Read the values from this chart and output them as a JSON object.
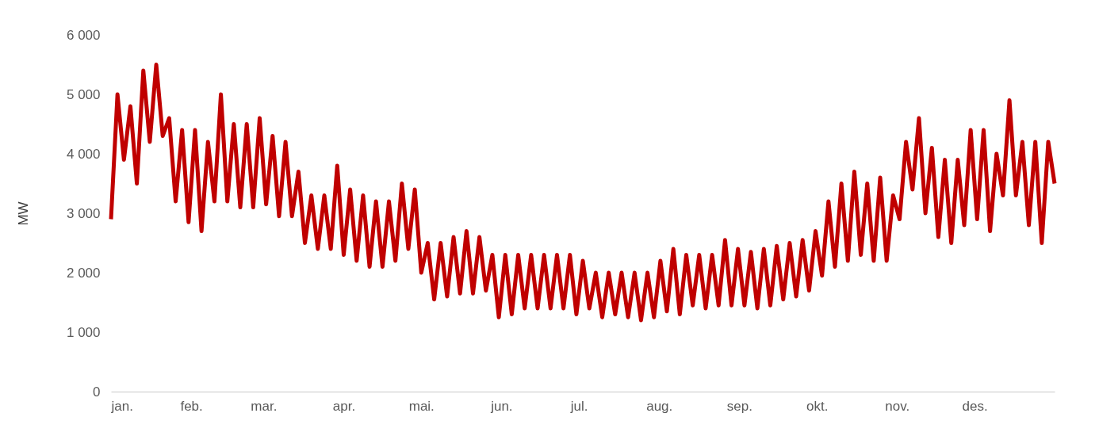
{
  "chart_data": {
    "type": "line",
    "ylabel": "MW",
    "x": [
      "--01-01",
      "--01-03T12:00",
      "--01-06",
      "--01-08T12:00",
      "--01-11",
      "--01-13T12:00",
      "--01-16",
      "--01-18T12:00",
      "--01-21",
      "--01-23T12:00",
      "--01-26",
      "--01-28T12:00",
      "--01-31",
      "--02-02T12:00",
      "--02-05",
      "--02-07T12:00",
      "--02-10",
      "--02-12T12:00",
      "--02-15",
      "--02-17T12:00",
      "--02-20",
      "--02-22T12:00",
      "--02-25",
      "--02-27T12:00",
      "--03-02",
      "--03-04T12:00",
      "--03-07",
      "--03-09T12:00",
      "--03-12",
      "--03-14T12:00",
      "--03-17",
      "--03-19T12:00",
      "--03-22",
      "--03-24T12:00",
      "--03-27",
      "--03-29T12:00",
      "--04-01",
      "--04-03T12:00",
      "--04-06",
      "--04-08T12:00",
      "--04-11",
      "--04-13T12:00",
      "--04-16",
      "--04-18T12:00",
      "--04-21",
      "--04-23T12:00",
      "--04-26",
      "--04-28T12:00",
      "--05-01",
      "--05-03T12:00",
      "--05-06",
      "--05-08T12:00",
      "--05-11",
      "--05-13T12:00",
      "--05-16",
      "--05-18T12:00",
      "--05-21",
      "--05-23T12:00",
      "--05-26",
      "--05-28T12:00",
      "--05-31",
      "--06-02T12:00",
      "--06-05",
      "--06-07T12:00",
      "--06-10",
      "--06-12T12:00",
      "--06-15",
      "--06-17T12:00",
      "--06-20",
      "--06-22T12:00",
      "--06-25",
      "--06-27T12:00",
      "--06-30",
      "--07-02T12:00",
      "--07-05",
      "--07-07T12:00",
      "--07-10",
      "--07-12T12:00",
      "--07-15",
      "--07-17T12:00",
      "--07-20",
      "--07-22T12:00",
      "--07-25",
      "--07-27T12:00",
      "--07-30",
      "--08-01T12:00",
      "--08-04",
      "--08-06T12:00",
      "--08-09",
      "--08-11T12:00",
      "--08-14",
      "--08-16T12:00",
      "--08-19",
      "--08-21T12:00",
      "--08-24",
      "--08-26T12:00",
      "--08-29",
      "--08-31T12:00",
      "--09-03",
      "--09-05T12:00",
      "--09-08",
      "--09-10T12:00",
      "--09-13",
      "--09-15T12:00",
      "--09-18",
      "--09-20T12:00",
      "--09-23",
      "--09-25T12:00",
      "--09-28",
      "--09-30T12:00",
      "--10-03",
      "--10-05T12:00",
      "--10-08",
      "--10-10T12:00",
      "--10-13",
      "--10-15T12:00",
      "--10-18",
      "--10-20T12:00",
      "--10-23",
      "--10-25T12:00",
      "--10-28",
      "--10-30T12:00",
      "--11-02",
      "--11-04T12:00",
      "--11-07",
      "--11-09T12:00",
      "--11-12",
      "--11-14T12:00",
      "--11-17",
      "--11-19T12:00",
      "--11-22",
      "--11-24T12:00",
      "--11-27",
      "--11-29T12:00",
      "--12-02",
      "--12-04T12:00",
      "--12-07",
      "--12-09T12:00",
      "--12-12",
      "--12-14T12:00",
      "--12-17",
      "--12-19T12:00",
      "--12-22",
      "--12-24T12:00",
      "--12-27",
      "--12-29T12:00",
      "--12-31T23:00"
    ],
    "series": [
      {
        "color": "#c00000",
        "values": [
          2900,
          5000,
          3900,
          4800,
          3500,
          5400,
          4200,
          5500,
          4300,
          4600,
          3200,
          4400,
          2850,
          4400,
          2700,
          4200,
          3200,
          5000,
          3200,
          4500,
          3100,
          4500,
          3100,
          4600,
          3150,
          4300,
          2950,
          4200,
          2950,
          3700,
          2500,
          3300,
          2400,
          3300,
          2400,
          3800,
          2300,
          3400,
          2200,
          3300,
          2100,
          3200,
          2100,
          3200,
          2200,
          3500,
          2400,
          3400,
          2000,
          2500,
          1550,
          2500,
          1600,
          2600,
          1650,
          2700,
          1650,
          2600,
          1700,
          2300,
          1250,
          2300,
          1300,
          2300,
          1400,
          2300,
          1400,
          2300,
          1400,
          2300,
          1400,
          2300,
          1300,
          2200,
          1400,
          2000,
          1250,
          2000,
          1300,
          2000,
          1250,
          2000,
          1200,
          2000,
          1250,
          2200,
          1350,
          2400,
          1300,
          2300,
          1450,
          2300,
          1400,
          2300,
          1450,
          2550,
          1450,
          2400,
          1450,
          2350,
          1400,
          2400,
          1450,
          2450,
          1550,
          2500,
          1600,
          2550,
          1700,
          2700,
          1950,
          3200,
          2100,
          3500,
          2200,
          3700,
          2300,
          3500,
          2200,
          3600,
          2200,
          3300,
          2900,
          4200,
          3400,
          4600,
          3000,
          4100,
          2600,
          3900,
          2500,
          3900,
          2800,
          4400,
          2900,
          4400,
          2700,
          4000,
          3300,
          4900,
          3300,
          4200,
          2800,
          4200,
          2500,
          4200,
          3500
        ]
      }
    ],
    "xlim": [
      "--01-01",
      "--12-31T23:00"
    ],
    "xticks": [
      {
        "value": "--01-01",
        "label": "jan."
      },
      {
        "value": "--02-01",
        "label": "feb."
      },
      {
        "value": "--03-01",
        "label": "mar."
      },
      {
        "value": "--04-01",
        "label": "apr."
      },
      {
        "value": "--05-01",
        "label": "mai."
      },
      {
        "value": "--06-01",
        "label": "jun."
      },
      {
        "value": "--07-01",
        "label": "jul."
      },
      {
        "value": "--08-01",
        "label": "aug."
      },
      {
        "value": "--09-01",
        "label": "sep."
      },
      {
        "value": "--10-01",
        "label": "okt."
      },
      {
        "value": "--11-01",
        "label": "nov."
      },
      {
        "value": "--12-01",
        "label": "des."
      }
    ],
    "ylim": [
      0,
      6000
    ],
    "yticks": [
      0,
      {
        "value": 1000,
        "label": "1 000"
      },
      {
        "value": 2000,
        "label": "2 000"
      },
      {
        "value": 3000,
        "label": "3 000"
      },
      {
        "value": 4000,
        "label": "4 000"
      },
      {
        "value": 5000,
        "label": "5 000"
      },
      {
        "value": 6000,
        "label": "6 000"
      }
    ]
  }
}
